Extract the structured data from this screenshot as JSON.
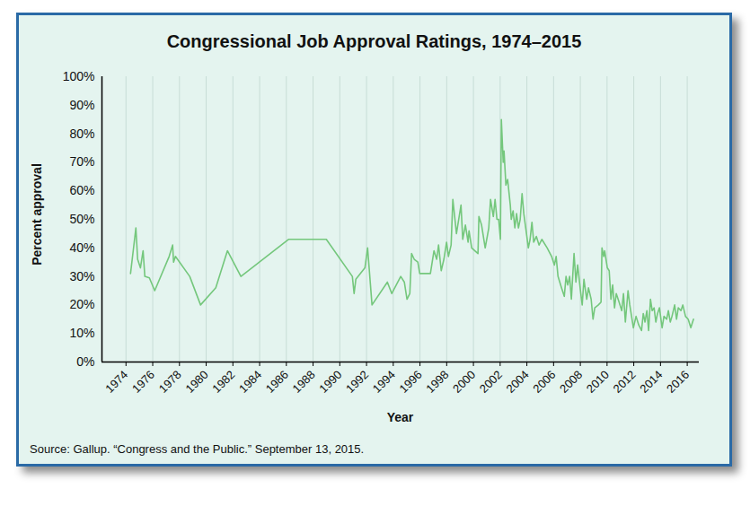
{
  "chart_data": {
    "type": "line",
    "title": "Congressional Job Approval Ratings, 1974–2015",
    "x_label": "Year",
    "y_label": "Percent approval",
    "source": "Source: Gallup. “Congress and the Public.” September 13, 2015.",
    "x": [
      1974.34,
      1974.54,
      1974.74,
      1974.87,
      1975.08,
      1975.28,
      1975.41,
      1975.75,
      1976.15,
      1977.23,
      1977.49,
      1977.56,
      1977.7,
      1978.77,
      1979.58,
      1980.72,
      1981.59,
      1982.6,
      1986.16,
      1988.99,
      1990.94,
      1991.07,
      1991.2,
      1991.88,
      1992.08,
      1992.41,
      1993.56,
      1993.89,
      1994.56,
      1994.83,
      1995.03,
      1995.24,
      1995.37,
      1995.57,
      1995.84,
      1995.98,
      1996.78,
      1997.05,
      1997.25,
      1997.39,
      1997.59,
      1997.79,
      1997.99,
      1998.13,
      1998.33,
      1998.46,
      1998.73,
      1999.07,
      1999.2,
      1999.4,
      1999.6,
      1999.67,
      1999.87,
      2000.34,
      2000.41,
      2000.61,
      2000.88,
      2001.15,
      2001.28,
      2001.49,
      2001.62,
      2001.76,
      2001.89,
      2002.02,
      2002.09,
      2002.23,
      2002.29,
      2002.43,
      2002.56,
      2002.76,
      2002.83,
      2002.97,
      2003.1,
      2003.23,
      2003.37,
      2003.5,
      2003.64,
      2003.77,
      2003.97,
      2004.11,
      2004.24,
      2004.38,
      2004.51,
      2004.71,
      2004.91,
      2005.12,
      2005.52,
      2005.85,
      2006.06,
      2006.19,
      2006.33,
      2006.59,
      2006.8,
      2006.93,
      2007.06,
      2007.2,
      2007.33,
      2007.53,
      2007.67,
      2007.8,
      2008.01,
      2008.14,
      2008.27,
      2008.48,
      2008.61,
      2008.81,
      2008.95,
      2009.08,
      2009.35,
      2009.55,
      2009.62,
      2009.75,
      2009.82,
      2010.02,
      2010.16,
      2010.29,
      2010.42,
      2010.56,
      2010.69,
      2010.9,
      2011.1,
      2011.23,
      2011.37,
      2011.57,
      2011.7,
      2011.97,
      2012.17,
      2012.37,
      2012.58,
      2012.71,
      2012.84,
      2012.98,
      2013.11,
      2013.25,
      2013.38,
      2013.52,
      2013.65,
      2013.78,
      2013.92,
      2014.12,
      2014.26,
      2014.46,
      2014.59,
      2014.73,
      2014.86,
      2015.06,
      2015.2,
      2015.33,
      2015.53,
      2015.67,
      2015.87,
      2016.07,
      2016.27,
      2016.47
    ],
    "series": [
      {
        "name": "Percent approval",
        "color": "#74c77c",
        "values": [
          31,
          39,
          47,
          36,
          33,
          39,
          30,
          29.5,
          25,
          37,
          41,
          35,
          37,
          30,
          20,
          26,
          39,
          30,
          43,
          43,
          30,
          24,
          29,
          33,
          40,
          20,
          28,
          24,
          30,
          28,
          22,
          24,
          38,
          36,
          35,
          31,
          31,
          39,
          36,
          41,
          32,
          36,
          42,
          37,
          41,
          57,
          45,
          55,
          43,
          48,
          42,
          46,
          40,
          38,
          51,
          48,
          40,
          47,
          57,
          51,
          57,
          50,
          50,
          43,
          85,
          70,
          74,
          62,
          64,
          55,
          50,
          53,
          47,
          52,
          47,
          50,
          59,
          52,
          45,
          40,
          43,
          49,
          42,
          44,
          41,
          43,
          40,
          37,
          34,
          37,
          30,
          26,
          23,
          30,
          27,
          30,
          22,
          38,
          28,
          34,
          25,
          20,
          29,
          22,
          26,
          22,
          15,
          19,
          20,
          21,
          40,
          37,
          39,
          33,
          32,
          22,
          27,
          19,
          24,
          21,
          18,
          24,
          14,
          25,
          20,
          12,
          16,
          13,
          11,
          17,
          14,
          18,
          11,
          22,
          18,
          19,
          14,
          17,
          19,
          12,
          16,
          15,
          18,
          14,
          16,
          20,
          15,
          19,
          18,
          20,
          16,
          15,
          12,
          15
        ]
      }
    ],
    "xlim": [
      1972.2,
      2016.9
    ],
    "xticks": [
      1974,
      1976,
      1978,
      1980,
      1982,
      1984,
      1986,
      1988,
      1990,
      1992,
      1994,
      1996,
      1998,
      2000,
      2002,
      2004,
      2006,
      2008,
      2010,
      2012,
      2014,
      2016
    ],
    "ylim": [
      0,
      100
    ],
    "yticks": [
      {
        "value": 0,
        "label": "0%"
      },
      {
        "value": 10,
        "label": "10%"
      },
      {
        "value": 20,
        "label": "20%"
      },
      {
        "value": 30,
        "label": "30%"
      },
      {
        "value": 40,
        "label": "40%"
      },
      {
        "value": 50,
        "label": "50%"
      },
      {
        "value": 60,
        "label": "60%"
      },
      {
        "value": 70,
        "label": "70%"
      },
      {
        "value": 80,
        "label": "80%"
      },
      {
        "value": 90,
        "label": "90%"
      },
      {
        "value": 100,
        "label": "100%"
      }
    ],
    "grid": true,
    "line_style": "solid"
  }
}
